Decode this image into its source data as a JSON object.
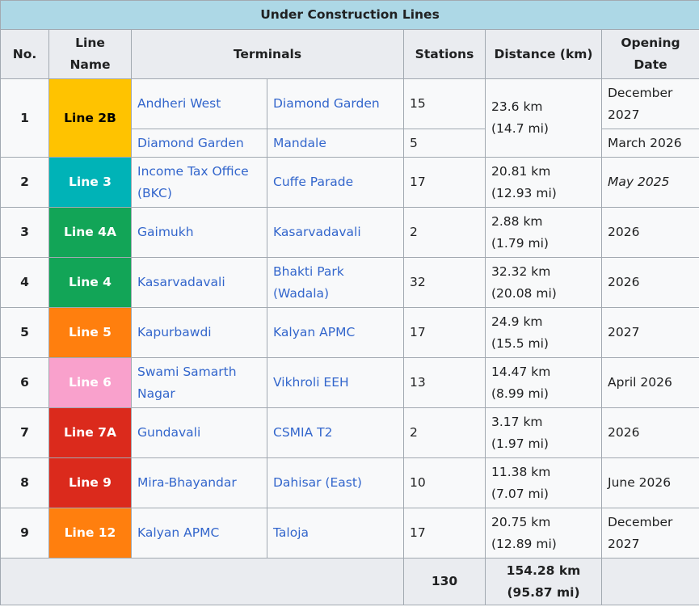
{
  "title": "Under Construction Lines",
  "headers": {
    "no": "No.",
    "line": "Line Name",
    "terminals": "Terminals",
    "stations": "Stations",
    "distance": "Distance (km)",
    "opening": "Opening Date"
  },
  "rows": [
    {
      "no": "1",
      "line": "Line 2B",
      "line_bg": "#ffc300",
      "line_fg": "#000000",
      "t1": "Andheri West",
      "t2": "Diamond Garden",
      "stations": "15",
      "dist_km": "23.6 km",
      "dist_mi": "(14.7 mi)",
      "date": "December 2027",
      "t1b": "Diamond Garden",
      "t2b": "Mandale",
      "stations_b": "5",
      "date_b": "March 2026"
    },
    {
      "no": "2",
      "line": "Line 3",
      "line_bg": "#00b3b7",
      "line_fg": "#ffffff",
      "t1": "Income Tax Office (BKC)",
      "t2": "Cuffe Parade",
      "stations": "17",
      "dist_km": "20.81 km",
      "dist_mi": "(12.93 mi)",
      "date": "May 2025"
    },
    {
      "no": "3",
      "line": "Line 4A",
      "line_bg": "#12a557",
      "line_fg": "#ffffff",
      "t1": "Gaimukh",
      "t2": "Kasarvadavali",
      "stations": "2",
      "dist_km": "2.88 km",
      "dist_mi": "(1.79 mi)",
      "date": "2026"
    },
    {
      "no": "4",
      "line": "Line 4",
      "line_bg": "#12a557",
      "line_fg": "#ffffff",
      "t1": "Kasarvadavali",
      "t2": "Bhakti Park (Wadala)",
      "stations": "32",
      "dist_km": "32.32 km",
      "dist_mi": "(20.08 mi)",
      "date": "2026"
    },
    {
      "no": "5",
      "line": "Line 5",
      "line_bg": "#ff7f0e",
      "line_fg": "#ffffff",
      "t1": "Kapurbawdi",
      "t2": "Kalyan APMC",
      "stations": "17",
      "dist_km": "24.9 km",
      "dist_mi": "(15.5 mi)",
      "date": "2027"
    },
    {
      "no": "6",
      "line": "Line 6",
      "line_bg": "#f9a1cc",
      "line_fg": "#ffffff",
      "t1": "Swami Samarth Nagar",
      "t2": "Vikhroli EEH",
      "stations": "13",
      "dist_km": "14.47 km",
      "dist_mi": "(8.99 mi)",
      "date": "April 2026"
    },
    {
      "no": "7",
      "line": "Line 7A",
      "line_bg": "#db2a1c",
      "line_fg": "#ffffff",
      "t1": "Gundavali",
      "t2": "CSMIA T2",
      "stations": "2",
      "dist_km": "3.17 km",
      "dist_mi": "(1.97 mi)",
      "date": "2026"
    },
    {
      "no": "8",
      "line": "Line 9",
      "line_bg": "#db2a1c",
      "line_fg": "#ffffff",
      "t1": "Mira-Bhayandar",
      "t2": "Dahisar (East)",
      "stations": "10",
      "dist_km": "11.38 km",
      "dist_mi": "(7.07 mi)",
      "date": "June 2026"
    },
    {
      "no": "9",
      "line": "Line 12",
      "line_bg": "#ff7f0e",
      "line_fg": "#ffffff",
      "t1": "Kalyan APMC",
      "t2": "Taloja",
      "stations": "17",
      "dist_km": "20.75 km",
      "dist_mi": "(12.89 mi)",
      "date": "December 2027"
    }
  ],
  "totals": {
    "stations": "130",
    "dist_km": "154.28 km",
    "dist_mi": "(95.87 mi)"
  }
}
